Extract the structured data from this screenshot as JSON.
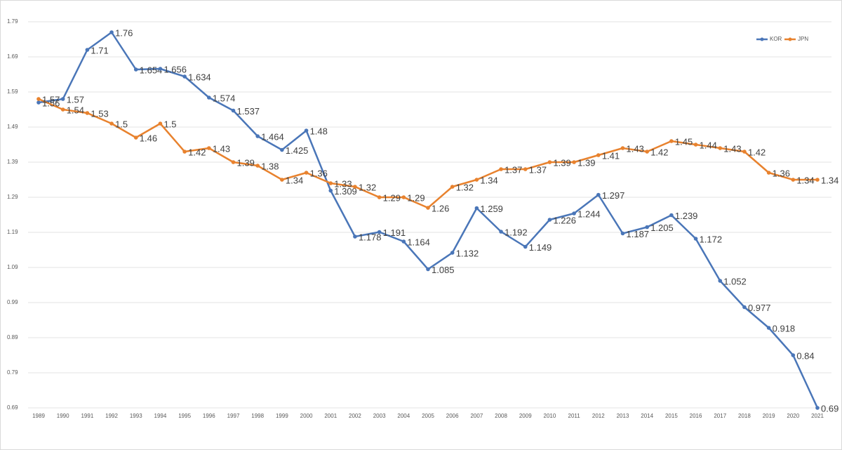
{
  "chart_data": {
    "type": "line",
    "categories": [
      "1989",
      "1990",
      "1991",
      "1992",
      "1993",
      "1994",
      "1995",
      "1996",
      "1997",
      "1998",
      "1999",
      "2000",
      "2001",
      "2002",
      "2003",
      "2004",
      "2005",
      "2006",
      "2007",
      "2008",
      "2009",
      "2010",
      "2011",
      "2012",
      "2013",
      "2014",
      "2015",
      "2016",
      "2017",
      "2018",
      "2019",
      "2020",
      "2021"
    ],
    "series": [
      {
        "name": "KOR",
        "color": "#4a76b8",
        "values": [
          1.56,
          1.57,
          1.71,
          1.76,
          1.654,
          1.656,
          1.634,
          1.574,
          1.537,
          1.464,
          1.425,
          1.48,
          1.309,
          1.178,
          1.191,
          1.164,
          1.085,
          1.132,
          1.259,
          1.192,
          1.149,
          1.226,
          1.244,
          1.297,
          1.187,
          1.205,
          1.239,
          1.172,
          1.052,
          0.977,
          0.918,
          0.84,
          0.69
        ]
      },
      {
        "name": "JPN",
        "color": "#e8822e",
        "values": [
          1.57,
          1.54,
          1.53,
          1.5,
          1.46,
          1.5,
          1.42,
          1.43,
          1.39,
          1.38,
          1.34,
          1.36,
          1.33,
          1.32,
          1.29,
          1.29,
          1.26,
          1.32,
          1.34,
          1.37,
          1.37,
          1.39,
          1.39,
          1.41,
          1.43,
          1.42,
          1.45,
          1.44,
          1.43,
          1.42,
          1.36,
          1.34,
          1.34
        ]
      }
    ],
    "ylim": [
      0.69,
      1.79
    ],
    "yticks": [
      0.69,
      0.79,
      0.89,
      0.99,
      1.09,
      1.19,
      1.29,
      1.39,
      1.49,
      1.59,
      1.69,
      1.79
    ],
    "grid": true,
    "legend": "top-right"
  }
}
